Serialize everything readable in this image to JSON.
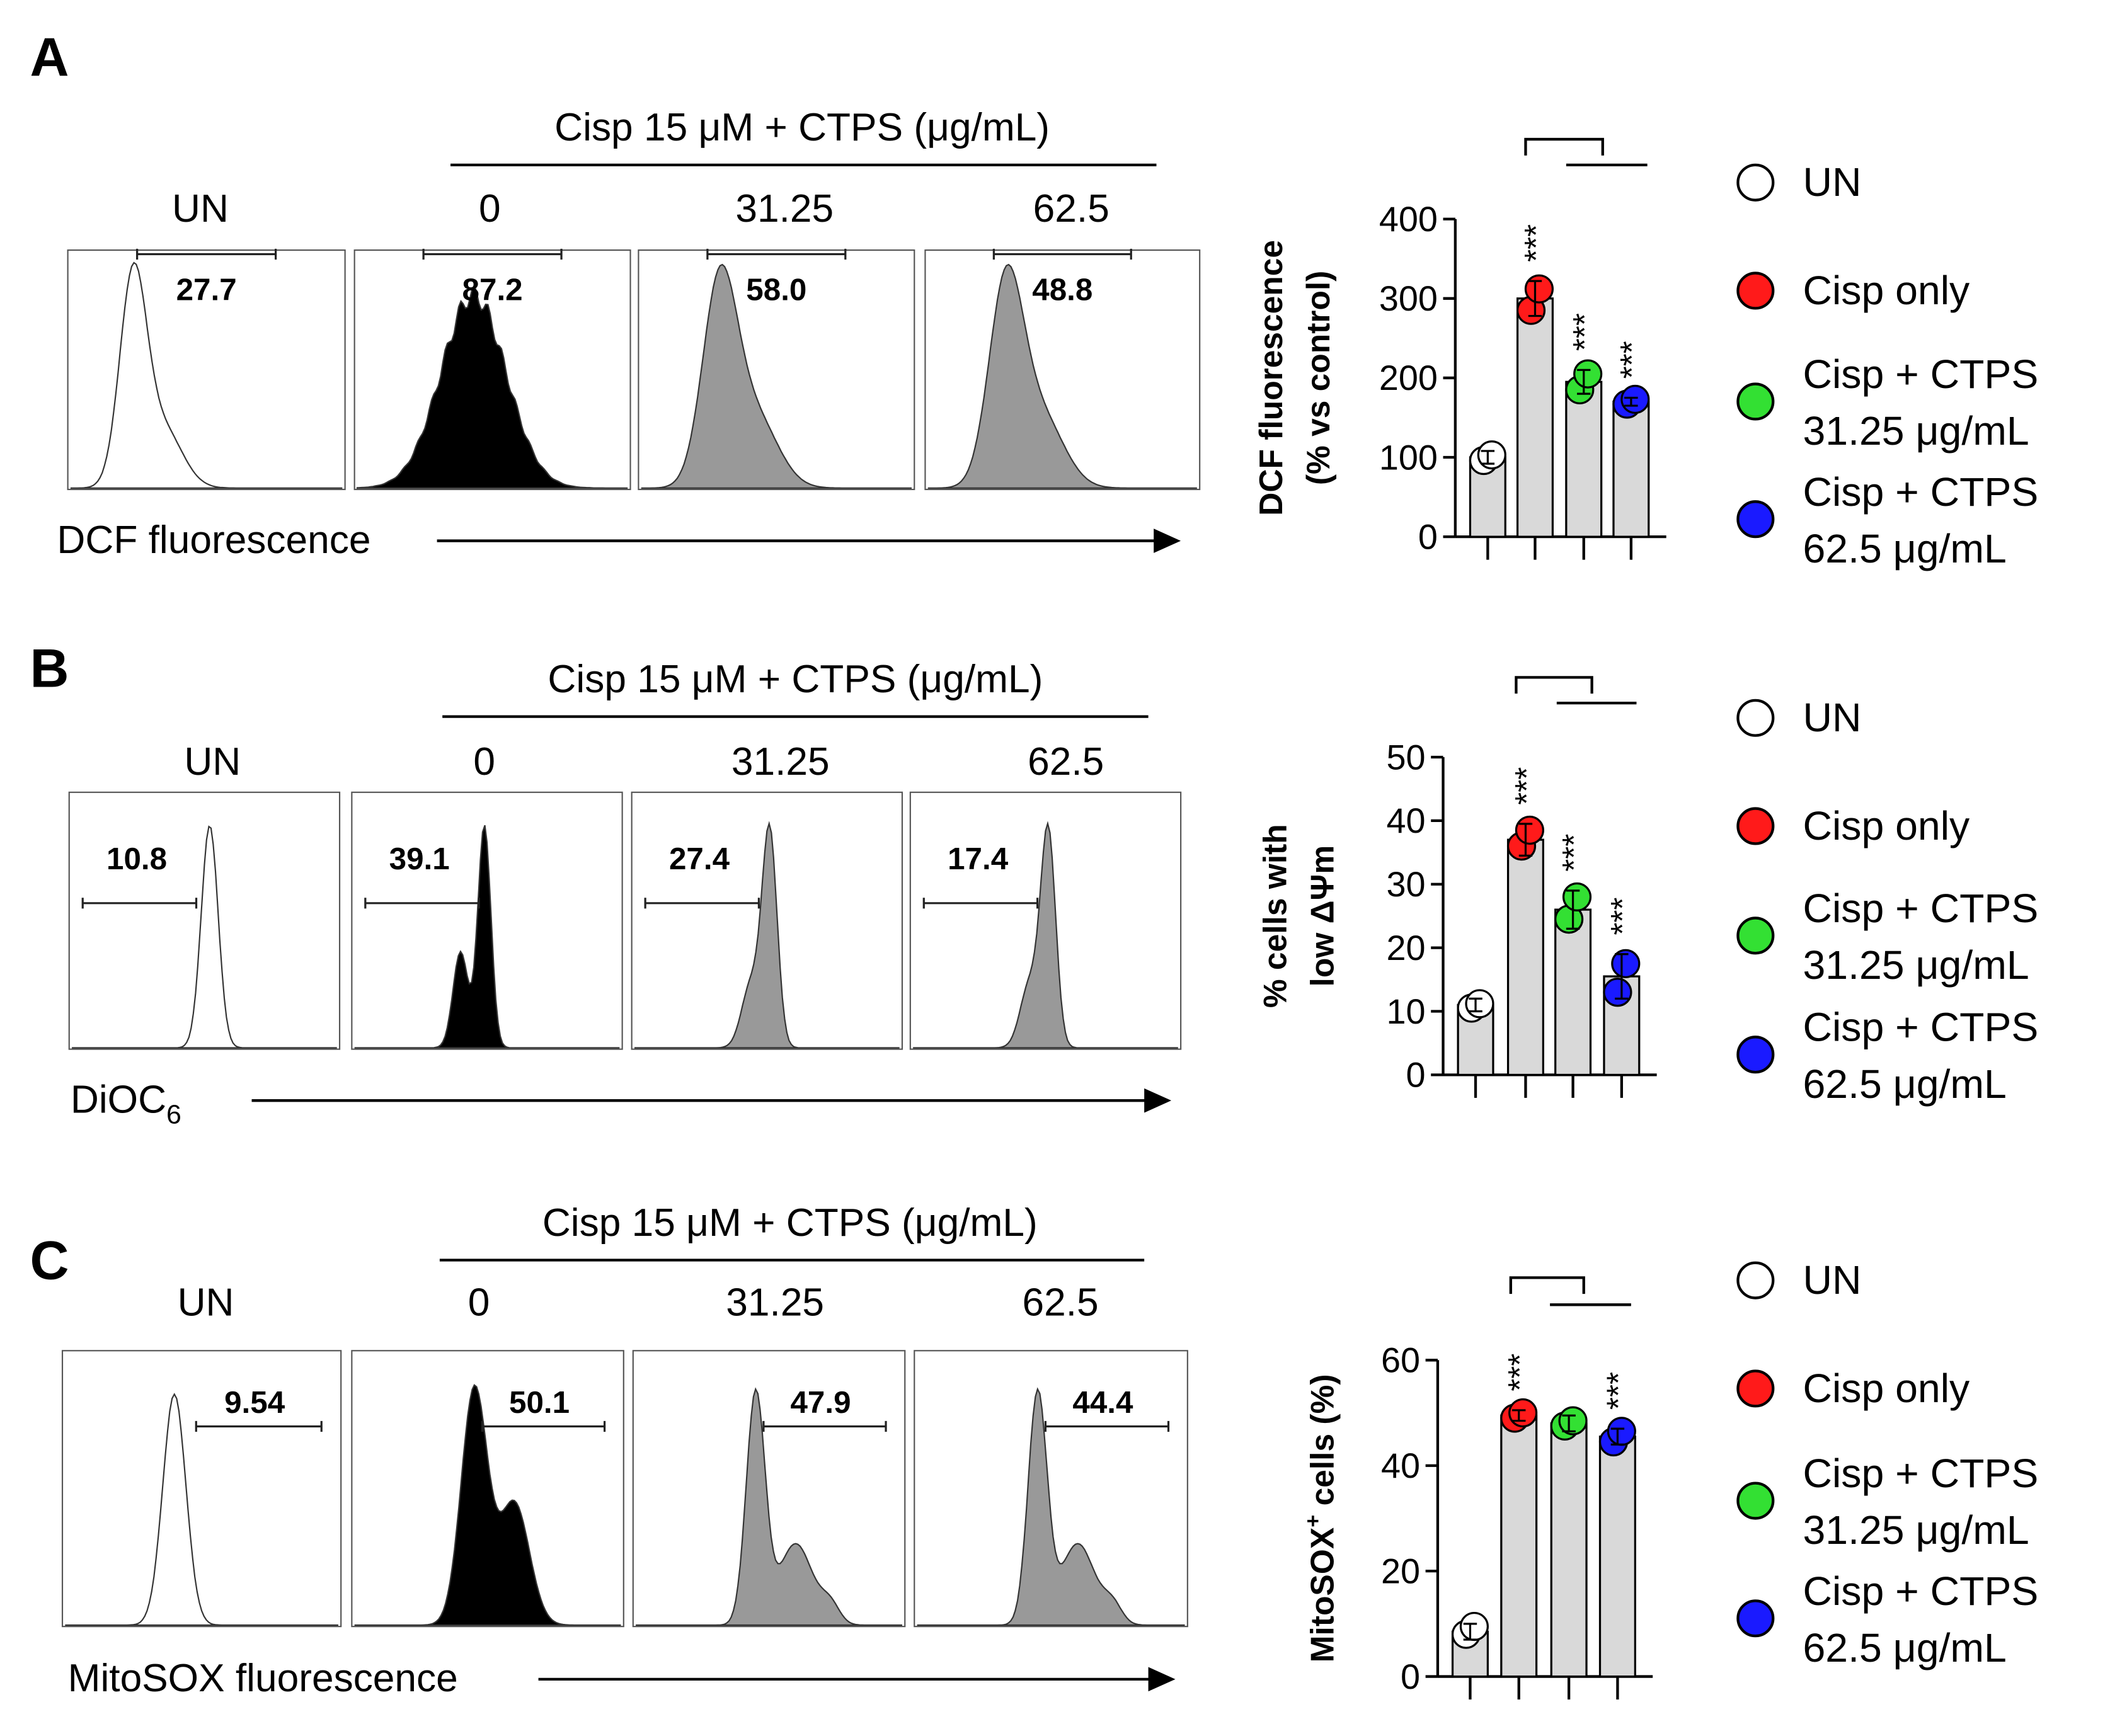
{
  "palette": {
    "UN": "#ffffff",
    "Cisp": "#ff1a1a",
    "CTPS31": "#33e033",
    "CTPS62": "#1a1aff",
    "bar": "#d9d9d9",
    "hist_black": "#000000",
    "hist_gray": "#999999"
  },
  "legend": [
    {
      "label": [
        "UN"
      ],
      "color": "#ffffff"
    },
    {
      "label": [
        "Cisp only"
      ],
      "color": "#ff1a1a"
    },
    {
      "label": [
        "Cisp + CTPS",
        "31.25 μg/mL"
      ],
      "color": "#33e033"
    },
    {
      "label": [
        "Cisp + CTPS",
        "62.5 μg/mL"
      ],
      "color": "#1a1aff"
    }
  ],
  "chart_data": [
    {
      "panel": "A",
      "type": "histogram",
      "header": "Cisp 15 μM + CTPS (μg/mL)",
      "columns": [
        "UN",
        "0",
        "31.25",
        "62.5"
      ],
      "gate_values": [
        "27.7",
        "87.2",
        "58.0",
        "48.8"
      ],
      "x_axis_label": "DCF fluorescence",
      "x_axis_sub": ""
    },
    {
      "panel": "A",
      "type": "bar",
      "ylabel": [
        "DCF fluorescence",
        "(% vs control)"
      ],
      "ylim": [
        0,
        400
      ],
      "yticks": [
        0,
        100,
        200,
        300,
        400
      ],
      "categories": [
        "UN",
        "Cisp only",
        "Cisp + CTPS 31.25 μg/mL",
        "Cisp + CTPS 62.5 μg/mL"
      ],
      "values": [
        100,
        300,
        195,
        170
      ],
      "errors": [
        8,
        22,
        15,
        5
      ],
      "points": [
        [
          96,
          103
        ],
        [
          285,
          312
        ],
        [
          185,
          205
        ],
        [
          167,
          173
        ]
      ],
      "significance": [
        "",
        "***",
        "***",
        "***"
      ]
    },
    {
      "panel": "B",
      "type": "histogram",
      "header": "Cisp 15 μM + CTPS (μg/mL)",
      "columns": [
        "UN",
        "0",
        "31.25",
        "62.5"
      ],
      "gate_values": [
        "10.8",
        "39.1",
        "27.4",
        "17.4"
      ],
      "x_axis_label": "DiOC",
      "x_axis_sub": "6"
    },
    {
      "panel": "B",
      "type": "bar",
      "ylabel": [
        "% cells with",
        "low ΔΨm"
      ],
      "ylim": [
        0,
        50
      ],
      "yticks": [
        0,
        10,
        20,
        30,
        40,
        50
      ],
      "categories": [
        "UN",
        "Cisp only",
        "Cisp + CTPS 31.25 μg/mL",
        "Cisp + CTPS 62.5 μg/mL"
      ],
      "values": [
        11,
        37,
        26,
        15.5
      ],
      "errors": [
        1,
        2.5,
        3,
        3.5
      ],
      "points": [
        [
          10.5,
          11.2
        ],
        [
          36,
          38.5
        ],
        [
          24.5,
          28
        ],
        [
          13,
          17.5
        ]
      ],
      "significance": [
        "",
        "***",
        "***",
        "***"
      ]
    },
    {
      "panel": "C",
      "type": "histogram",
      "header": "Cisp 15 μM + CTPS (μg/mL)",
      "columns": [
        "UN",
        "0",
        "31.25",
        "62.5"
      ],
      "gate_values": [
        "9.54",
        "50.1",
        "47.9",
        "44.4"
      ],
      "x_axis_label": "MitoSOX fluorescence",
      "x_axis_sub": ""
    },
    {
      "panel": "C",
      "type": "bar",
      "ylabel": [
        "MitoSOX",
        "+",
        " cells (%)"
      ],
      "ylim": [
        0,
        60
      ],
      "yticks": [
        0,
        20,
        40,
        60
      ],
      "categories": [
        "UN",
        "Cisp only",
        "Cisp + CTPS 31.25 μg/mL",
        "Cisp + CTPS 62.5 μg/mL"
      ],
      "values": [
        8.5,
        49.5,
        48,
        45.5
      ],
      "errors": [
        1.5,
        1,
        1.5,
        1.5
      ],
      "points": [
        [
          8,
          9.5
        ],
        [
          49,
          50
        ],
        [
          47.5,
          48.5
        ],
        [
          44.5,
          46.5
        ]
      ],
      "significance": [
        "",
        "***",
        "",
        "***"
      ]
    }
  ]
}
